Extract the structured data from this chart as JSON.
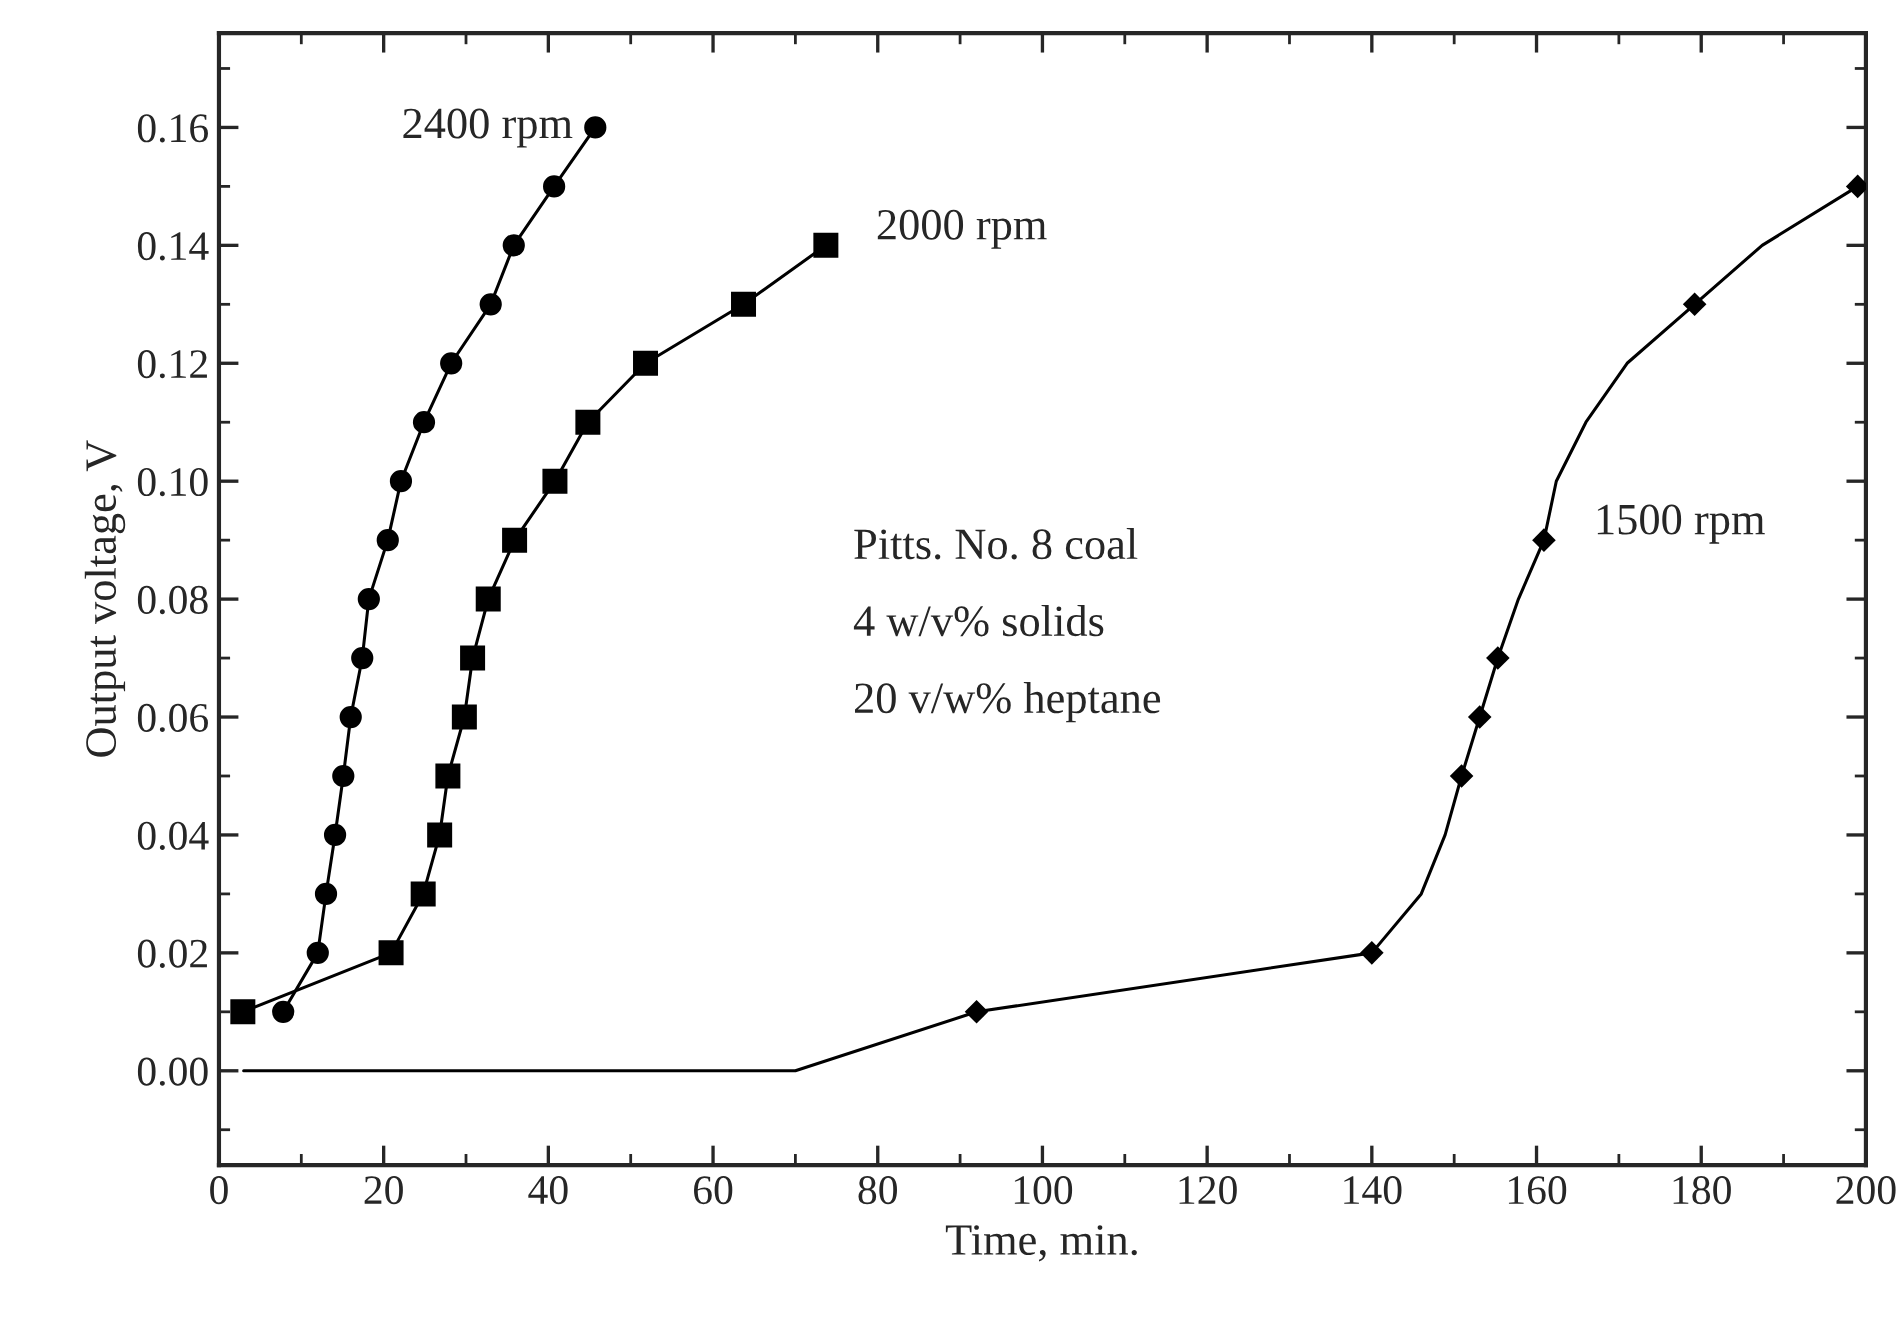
{
  "chart_data": {
    "type": "line",
    "xlabel": "Time, min.",
    "ylabel": "Output voltage, V",
    "xlim": [
      0,
      200
    ],
    "xticks": [
      0,
      20,
      40,
      60,
      80,
      100,
      120,
      140,
      160,
      180,
      200
    ],
    "ylim": [
      -0.016,
      0.176
    ],
    "yticks": [
      {
        "value": 0,
        "label": "0.00"
      },
      {
        "value": 0.02,
        "label": "0.02"
      },
      {
        "value": 0.04,
        "label": "0.04"
      },
      {
        "value": 0.06,
        "label": "0.06"
      },
      {
        "value": 0.08,
        "label": "0.08"
      },
      {
        "value": 0.1,
        "label": "0.10"
      },
      {
        "value": 0.12,
        "label": "0.12"
      },
      {
        "value": 0.14,
        "label": "0.14"
      },
      {
        "value": 0.16,
        "label": "0.16"
      }
    ],
    "grid": false,
    "legend": false,
    "series": [
      {
        "color": "#000000",
        "marker": "circle",
        "x": [
          7.8,
          12.0,
          13.0,
          14.1,
          15.1,
          16.0,
          17.4,
          18.2,
          20.5,
          22.1,
          24.9,
          28.2,
          33.0,
          35.8,
          40.7,
          45.7
        ],
        "values": [
          0.01,
          0.02,
          0.03,
          0.04,
          0.05,
          0.06,
          0.07,
          0.08,
          0.09,
          0.1,
          0.11,
          0.12,
          0.13,
          0.14,
          0.15,
          0.16
        ]
      },
      {
        "color": "#000000",
        "marker": "square",
        "x": [
          2.9,
          20.9,
          24.8,
          26.8,
          27.8,
          29.8,
          30.8,
          32.7,
          35.9,
          40.8,
          44.8,
          51.8,
          63.7,
          73.7
        ],
        "values": [
          0.01,
          0.02,
          0.03,
          0.04,
          0.05,
          0.06,
          0.07,
          0.08,
          0.09,
          0.1,
          0.11,
          0.12,
          0.13,
          0.14
        ]
      },
      {
        "color": "#000000",
        "marker": "none",
        "x": [
          3,
          5,
          20,
          25,
          50,
          70,
          92,
          140,
          146,
          148.9,
          150.9,
          153.1,
          155.3,
          157.8,
          160.9,
          162.4,
          166,
          171,
          179.2,
          187.4,
          199
        ],
        "values": [
          0,
          0,
          0,
          0,
          0,
          0,
          0.01,
          0.02,
          0.03,
          0.04,
          0.05,
          0.06,
          0.07,
          0.08,
          0.09,
          0.1,
          0.11,
          0.12,
          0.13,
          0.14,
          0.15
        ]
      },
      {
        "type": "scatter",
        "color": "#000000",
        "marker": "diamond",
        "x": [
          92,
          140,
          150.9,
          153.1,
          155.3,
          160.9,
          179.2,
          199
        ],
        "values": [
          0.01,
          0.02,
          0.05,
          0.06,
          0.07,
          0.09,
          0.13,
          0.15
        ]
      }
    ],
    "annotations": [
      {
        "text": "2400 rpm",
        "x": 45.7,
        "y": 0.16
      },
      {
        "text": "2000 rpm",
        "x": 73.7,
        "y": 0.14
      },
      {
        "text": "1500 rpm",
        "x": 160.9,
        "y": 0.09
      },
      "Pitts. No. 8 coal",
      "4 w/v% solids",
      "20 v/w% heptane"
    ]
  }
}
